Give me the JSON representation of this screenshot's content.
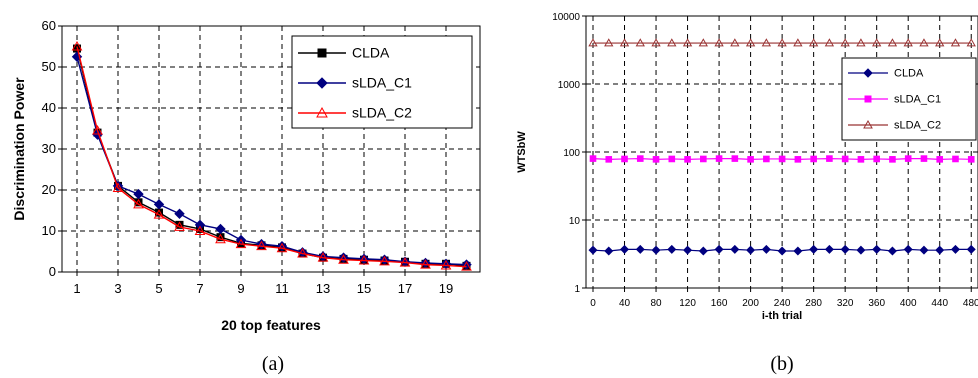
{
  "chart_data": [
    {
      "type": "line",
      "caption": "(a)",
      "xlabel": "20 top features",
      "ylabel": "Discrimination Power",
      "x": [
        1,
        2,
        3,
        4,
        5,
        6,
        7,
        8,
        9,
        10,
        11,
        12,
        13,
        14,
        15,
        16,
        17,
        18,
        19,
        20
      ],
      "xticks": [
        1,
        3,
        5,
        7,
        9,
        11,
        13,
        15,
        17,
        19
      ],
      "ylim": [
        0,
        60
      ],
      "yticks": [
        0,
        10,
        20,
        30,
        40,
        50,
        60
      ],
      "grid": true,
      "legend_position": "top-right",
      "series": [
        {
          "name": "CLDA",
          "color": "#000000",
          "marker": "square",
          "values": [
            54.5,
            34,
            21,
            17,
            14.5,
            11.5,
            10.5,
            8.5,
            7,
            6.5,
            6,
            4.5,
            3.5,
            3.2,
            3,
            2.8,
            2.5,
            2,
            2,
            1.5
          ]
        },
        {
          "name": "sLDA_C1",
          "color": "#000080",
          "marker": "diamond",
          "values": [
            52.5,
            33.5,
            21,
            19,
            16.5,
            14.2,
            11.5,
            10.5,
            7.8,
            6.8,
            6.3,
            4.8,
            3.8,
            3.5,
            3.2,
            3,
            2.5,
            2.2,
            2,
            1.8
          ]
        },
        {
          "name": "sLDA_C2",
          "color": "#ff0000",
          "marker": "triangle",
          "values": [
            55,
            34.5,
            20.5,
            16.5,
            14,
            11,
            10,
            8,
            6.8,
            6.3,
            5.8,
            4.5,
            3.5,
            3,
            2.8,
            2.6,
            2.3,
            1.8,
            1.6,
            1.3
          ]
        }
      ]
    },
    {
      "type": "line",
      "caption": "(b)",
      "xlabel": "i-th trial",
      "ylabel": "WTSbW",
      "yscale": "log",
      "ylim": [
        1,
        10000
      ],
      "yticks": [
        1,
        10,
        100,
        1000,
        10000
      ],
      "x": [
        0,
        20,
        40,
        60,
        80,
        100,
        120,
        140,
        160,
        180,
        200,
        220,
        240,
        260,
        280,
        300,
        320,
        340,
        360,
        380,
        400,
        420,
        440,
        460,
        480
      ],
      "xticks": [
        0,
        40,
        80,
        120,
        160,
        200,
        240,
        280,
        320,
        360,
        400,
        440,
        480
      ],
      "grid": true,
      "legend_position": "right",
      "series": [
        {
          "name": "CLDA",
          "color": "#000080",
          "marker": "diamond",
          "values": [
            3.6,
            3.5,
            3.7,
            3.7,
            3.6,
            3.7,
            3.6,
            3.5,
            3.7,
            3.7,
            3.6,
            3.7,
            3.5,
            3.5,
            3.7,
            3.7,
            3.7,
            3.6,
            3.7,
            3.5,
            3.7,
            3.6,
            3.6,
            3.7,
            3.7
          ]
        },
        {
          "name": "sLDA_C1",
          "color": "#ff00ff",
          "marker": "square",
          "values": [
            80,
            78,
            79,
            80,
            78,
            79,
            78,
            79,
            80,
            80,
            78,
            79,
            79,
            78,
            79,
            80,
            79,
            78,
            79,
            78,
            80,
            80,
            78,
            79,
            78
          ]
        },
        {
          "name": "sLDA_C2",
          "color": "#993333",
          "marker": "triangle",
          "values": [
            4000,
            4000,
            4000,
            4000,
            4000,
            4000,
            4000,
            4000,
            4000,
            4000,
            4000,
            4000,
            4000,
            4000,
            4000,
            4000,
            4000,
            4000,
            4000,
            4000,
            4000,
            4000,
            4000,
            4000,
            4000
          ]
        }
      ]
    }
  ]
}
